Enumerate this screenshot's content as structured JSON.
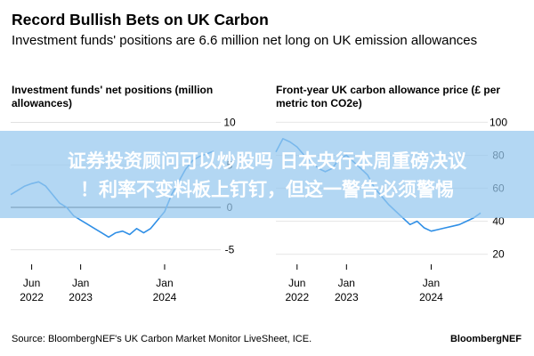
{
  "header": {
    "title": "Record Bullish Bets on UK Carbon",
    "subtitle": "Investment funds' positions are 6.6 million net long on UK emission allowances"
  },
  "overlay": {
    "line1": "证券投资顾问可以炒股吗 日本央行本周重磅决议",
    "line2": "！利率不变料板上钉钉，但这一警告必须警惕"
  },
  "footer": {
    "source": "Source: BloombergNEF's UK Carbon Market Monitor LiveSheet, ICE.",
    "brand": "BloombergNEF"
  },
  "colors": {
    "line": "#2f8fe6",
    "zero_line": "#222222",
    "grid": "#dddddd"
  },
  "chart_data": [
    {
      "type": "line",
      "title": "Investment funds' net positions (million allowances)",
      "x_ticks": [
        {
          "label": [
            "Jun",
            "2022"
          ],
          "date": "2022-06"
        },
        {
          "label": [
            "Jan",
            "2023"
          ],
          "date": "2023-01"
        },
        {
          "label": [
            "Jan",
            "2024"
          ],
          "date": "2024-01"
        }
      ],
      "y_ticks": [
        10,
        5,
        0,
        -5
      ],
      "ylim": [
        -6.5,
        11
      ],
      "xlim": [
        "2022-03",
        "2024-08"
      ],
      "series": [
        {
          "x": [
            "2022-03",
            "2022-04",
            "2022-05",
            "2022-06",
            "2022-07",
            "2022-08",
            "2022-09",
            "2022-10",
            "2022-11",
            "2022-12",
            "2023-01",
            "2023-02",
            "2023-03",
            "2023-04",
            "2023-05",
            "2023-06",
            "2023-07",
            "2023-08",
            "2023-09",
            "2023-10",
            "2023-11",
            "2023-12",
            "2024-01",
            "2024-02",
            "2024-03",
            "2024-04",
            "2024-05",
            "2024-06",
            "2024-07",
            "2024-08"
          ],
          "y": [
            1.5,
            2.0,
            2.5,
            2.8,
            3.0,
            2.5,
            1.5,
            0.5,
            0,
            -1.0,
            -1.5,
            -2.0,
            -2.5,
            -3.0,
            -3.5,
            -3.0,
            -2.8,
            -3.2,
            -2.5,
            -3.0,
            -2.5,
            -1.5,
            -0.5,
            1.5,
            3.0,
            4.5,
            5.5,
            6.0,
            6.3,
            6.6
          ]
        }
      ]
    },
    {
      "type": "line",
      "title": "Front-year UK carbon allowance price (£ per metric ton CO2e)",
      "x_ticks": [
        {
          "label": [
            "Jun",
            "2022"
          ],
          "date": "2022-06"
        },
        {
          "label": [
            "Jan",
            "2023"
          ],
          "date": "2023-01"
        },
        {
          "label": [
            "Jan",
            "2024"
          ],
          "date": "2024-01"
        }
      ],
      "y_ticks": [
        100,
        80,
        60,
        40,
        20
      ],
      "ylim": [
        15,
        105
      ],
      "xlim": [
        "2022-03",
        "2024-08"
      ],
      "series": [
        {
          "x": [
            "2022-03",
            "2022-04",
            "2022-05",
            "2022-06",
            "2022-07",
            "2022-08",
            "2022-09",
            "2022-10",
            "2022-11",
            "2022-12",
            "2023-01",
            "2023-02",
            "2023-03",
            "2023-04",
            "2023-05",
            "2023-06",
            "2023-07",
            "2023-08",
            "2023-09",
            "2023-10",
            "2023-11",
            "2023-12",
            "2024-01",
            "2024-02",
            "2024-03",
            "2024-04",
            "2024-05",
            "2024-06",
            "2024-07",
            "2024-08"
          ],
          "y": [
            82,
            90,
            88,
            85,
            80,
            76,
            72,
            70,
            72,
            78,
            80,
            76,
            72,
            68,
            60,
            55,
            50,
            46,
            42,
            38,
            40,
            36,
            34,
            35,
            36,
            37,
            38,
            40,
            42,
            45
          ]
        }
      ]
    }
  ]
}
